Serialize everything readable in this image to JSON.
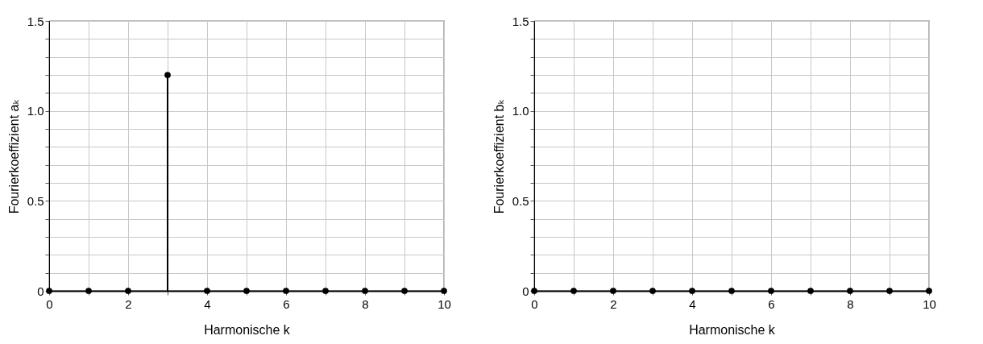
{
  "chart_data": [
    {
      "type": "lollipop",
      "x": [
        0,
        1,
        2,
        3,
        4,
        5,
        6,
        7,
        8,
        9,
        10
      ],
      "values": [
        0,
        0,
        0,
        1.2,
        0,
        0,
        0,
        0,
        0,
        0,
        0
      ],
      "color": "#000000",
      "marker": "circle",
      "grid": true,
      "xlabel": "Harmonische k",
      "ylabel": "Fourierkoeffizient aₖ",
      "xlim": [
        0,
        10
      ],
      "ylim": [
        0,
        1.5
      ],
      "xticks": [
        0,
        {
          "value": 1,
          "label": null
        },
        2,
        {
          "value": 3,
          "label": null
        },
        4,
        {
          "value": 5,
          "label": null
        },
        6,
        {
          "value": 7,
          "label": null
        },
        8,
        {
          "value": 9,
          "label": null
        },
        10
      ],
      "yticks": [
        0,
        {
          "value": 0.1,
          "label": null
        },
        {
          "value": 0.2,
          "label": null
        },
        {
          "value": 0.3,
          "label": null
        },
        {
          "value": 0.4,
          "label": null
        },
        0.5,
        {
          "value": 0.6,
          "label": null
        },
        {
          "value": 0.7,
          "label": null
        },
        {
          "value": 0.8,
          "label": null
        },
        {
          "value": 0.9,
          "label": null
        },
        {
          "value": 1,
          "label": "1.0"
        },
        {
          "value": 1.1,
          "label": null
        },
        {
          "value": 1.2,
          "label": null
        },
        {
          "value": 1.3,
          "label": null
        },
        {
          "value": 1.4,
          "label": null
        },
        1.5
      ]
    },
    {
      "type": "lollipop",
      "x": [
        0,
        1,
        2,
        3,
        4,
        5,
        6,
        7,
        8,
        9,
        10
      ],
      "values": [
        0,
        0,
        0,
        0,
        0,
        0,
        0,
        0,
        0,
        0,
        0
      ],
      "color": "#000000",
      "marker": "circle",
      "grid": true,
      "xlabel": "Harmonische k",
      "ylabel": "Fourierkoeffizient bₖ",
      "xlim": [
        0,
        10
      ],
      "ylim": [
        0,
        1.5
      ],
      "xticks": [
        0,
        {
          "value": 1,
          "label": null
        },
        2,
        {
          "value": 3,
          "label": null
        },
        4,
        {
          "value": 5,
          "label": null
        },
        6,
        {
          "value": 7,
          "label": null
        },
        8,
        {
          "value": 9,
          "label": null
        },
        10
      ],
      "yticks": [
        0,
        {
          "value": 0.1,
          "label": null
        },
        {
          "value": 0.2,
          "label": null
        },
        {
          "value": 0.3,
          "label": null
        },
        {
          "value": 0.4,
          "label": null
        },
        0.5,
        {
          "value": 0.6,
          "label": null
        },
        {
          "value": 0.7,
          "label": null
        },
        {
          "value": 0.8,
          "label": null
        },
        {
          "value": 0.9,
          "label": null
        },
        {
          "value": 1,
          "label": "1.0"
        },
        {
          "value": 1.1,
          "label": null
        },
        {
          "value": 1.2,
          "label": null
        },
        {
          "value": 1.3,
          "label": null
        },
        {
          "value": 1.4,
          "label": null
        },
        1.5
      ]
    }
  ]
}
